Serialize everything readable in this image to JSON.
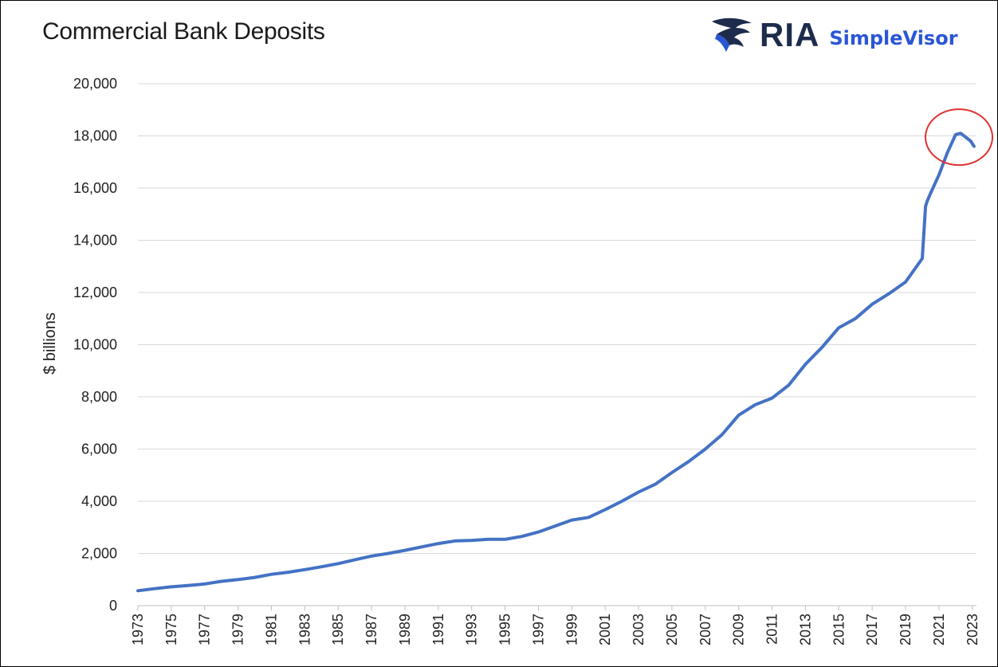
{
  "brand": {
    "name": "RIA",
    "product": "SimpleVisor",
    "colors": {
      "navy": "#1d2c4c",
      "blue": "#2a56d6"
    }
  },
  "chart_data": {
    "type": "line",
    "title": "Commercial Bank Deposits",
    "xlabel": "",
    "ylabel": "$ billions",
    "xlim": [
      1973,
      2023.25
    ],
    "ylim": [
      0,
      20000
    ],
    "grid": true,
    "yticks": [
      0,
      2000,
      4000,
      6000,
      8000,
      10000,
      12000,
      14000,
      16000,
      18000,
      20000
    ],
    "ytick_labels": [
      "0",
      "2,000",
      "4,000",
      "6,000",
      "8,000",
      "10,000",
      "12,000",
      "14,000",
      "16,000",
      "18,000",
      "20,000"
    ],
    "xtick_labels": [
      "1973",
      "1975",
      "1977",
      "1979",
      "1981",
      "1983",
      "1985",
      "1987",
      "1989",
      "1991",
      "1993",
      "1995",
      "1997",
      "1999",
      "2001",
      "2003",
      "2005",
      "2007",
      "2009",
      "2011",
      "2013",
      "2015",
      "2017",
      "2019",
      "2021",
      "2023"
    ],
    "series": [
      {
        "color": "#4472c4",
        "x": [
          1973,
          1974,
          1975,
          1976,
          1977,
          1978,
          1979,
          1980,
          1981,
          1982,
          1983,
          1984,
          1985,
          1986,
          1987,
          1988,
          1989,
          1990,
          1991,
          1992,
          1993,
          1994,
          1995,
          1996,
          1997,
          1998,
          1999,
          2000,
          2001,
          2002,
          2003,
          2004,
          2005,
          2006,
          2007,
          2008,
          2009,
          2010,
          2011,
          2012,
          2013,
          2014,
          2015,
          2016,
          2017,
          2018,
          2019,
          2020,
          2020.2,
          2020.3,
          2020.5,
          2021,
          2021.5,
          2022,
          2022.3,
          2022.6,
          2022.9,
          2023.1
        ],
        "y": [
          570,
          650,
          720,
          770,
          830,
          930,
          1000,
          1080,
          1200,
          1280,
          1380,
          1490,
          1610,
          1760,
          1900,
          2000,
          2120,
          2250,
          2380,
          2480,
          2500,
          2540,
          2540,
          2650,
          2820,
          3050,
          3280,
          3380,
          3680,
          4000,
          4350,
          4650,
          5100,
          5520,
          6000,
          6550,
          7300,
          7700,
          7950,
          8450,
          9250,
          9900,
          10650,
          11000,
          11550,
          11950,
          12400,
          13300,
          15300,
          15500,
          15800,
          16500,
          17350,
          18050,
          18100,
          17950,
          17800,
          17600
        ]
      }
    ],
    "annotation": {
      "type": "circle",
      "x": 2022.2,
      "y": 17950,
      "color": "#e03030"
    }
  }
}
